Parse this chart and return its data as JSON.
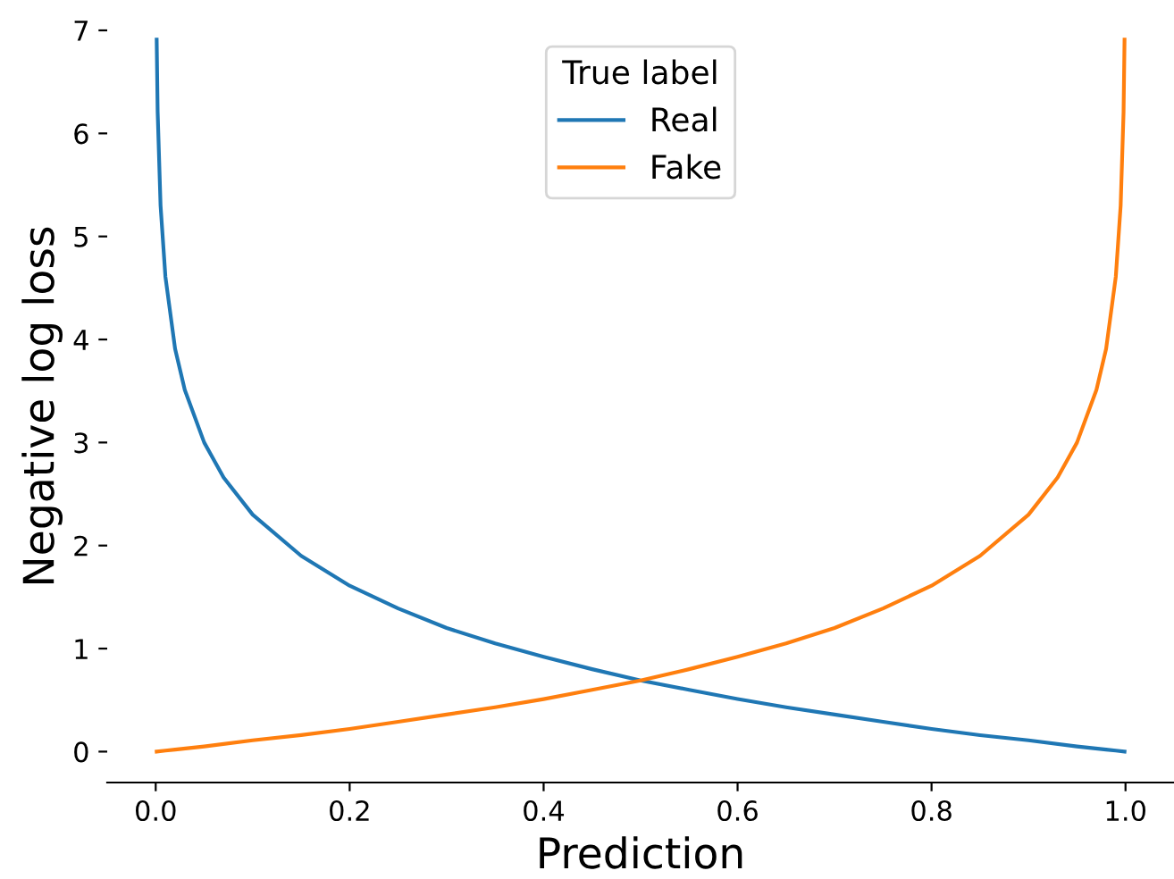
{
  "chart_data": {
    "type": "line",
    "xlabel": "Prediction",
    "ylabel": "Negative log loss",
    "legend_title": "True label",
    "legend": "top",
    "series": [
      {
        "name": "Real",
        "color": "#1f77b4",
        "x": [
          0.001,
          0.002,
          0.005,
          0.01,
          0.02,
          0.03,
          0.05,
          0.07,
          0.1,
          0.15,
          0.2,
          0.25,
          0.3,
          0.35,
          0.4,
          0.45,
          0.5,
          0.55,
          0.6,
          0.65,
          0.7,
          0.75,
          0.8,
          0.85,
          0.9,
          0.95,
          0.98,
          0.99,
          0.999
        ],
        "values": [
          6.91,
          6.21,
          5.3,
          4.61,
          3.91,
          3.51,
          3.0,
          2.66,
          2.3,
          1.9,
          1.61,
          1.39,
          1.2,
          1.05,
          0.92,
          0.8,
          0.69,
          0.6,
          0.51,
          0.43,
          0.36,
          0.29,
          0.22,
          0.16,
          0.11,
          0.05,
          0.02,
          0.01,
          0.0
        ]
      },
      {
        "name": "Fake",
        "color": "#ff7f0e",
        "x": [
          0.001,
          0.01,
          0.02,
          0.05,
          0.1,
          0.15,
          0.2,
          0.25,
          0.3,
          0.35,
          0.4,
          0.45,
          0.5,
          0.55,
          0.6,
          0.65,
          0.7,
          0.75,
          0.8,
          0.85,
          0.9,
          0.93,
          0.95,
          0.97,
          0.98,
          0.99,
          0.995,
          0.998,
          0.999
        ],
        "values": [
          0.0,
          0.01,
          0.02,
          0.05,
          0.11,
          0.16,
          0.22,
          0.29,
          0.36,
          0.43,
          0.51,
          0.6,
          0.69,
          0.8,
          0.92,
          1.05,
          1.2,
          1.39,
          1.61,
          1.9,
          2.3,
          2.66,
          3.0,
          3.51,
          3.91,
          4.61,
          5.3,
          6.21,
          6.91
        ]
      }
    ],
    "xlim": [
      -0.05,
      1.05
    ],
    "xticks": [
      {
        "value": 0,
        "label": "0.0"
      },
      0.2,
      0.4,
      0.6,
      0.8,
      {
        "value": 1,
        "label": "1.0"
      }
    ],
    "ylim": [
      -0.3,
      7
    ],
    "yticks": [
      0,
      1,
      2,
      3,
      4,
      5,
      6,
      7
    ],
    "grid": false,
    "marker": "none",
    "line_style": "solid"
  }
}
